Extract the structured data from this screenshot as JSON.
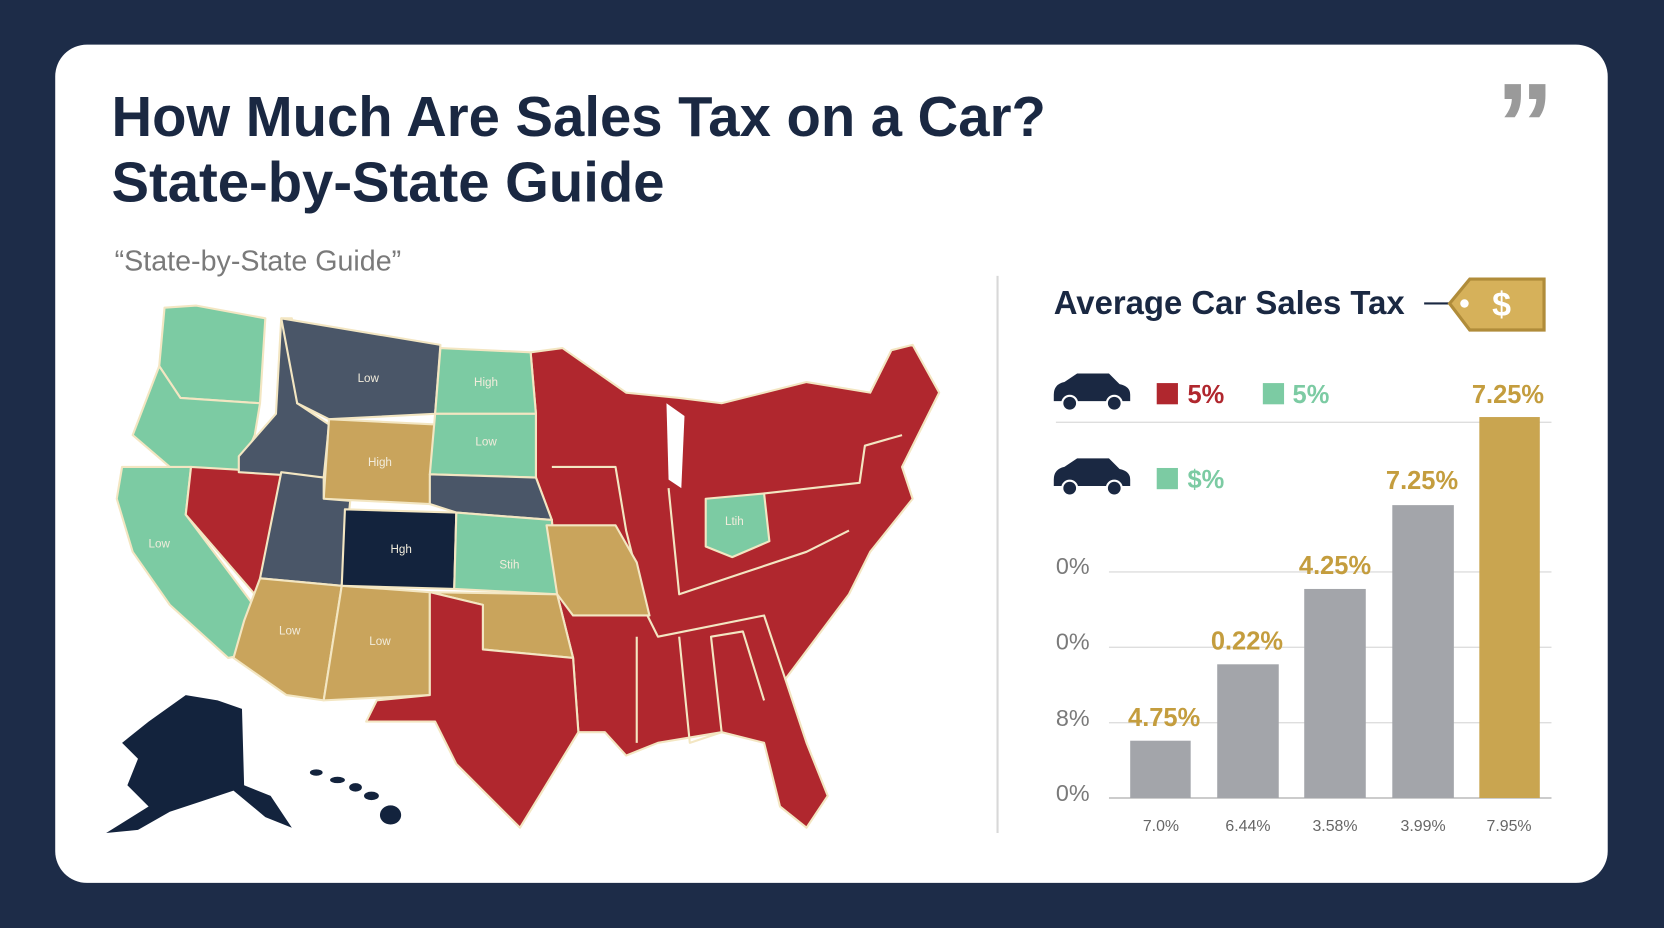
{
  "header": {
    "title_lines": [
      "How Much Are Sales Tax on a Car?",
      "State-by-State Guide"
    ],
    "subtitle": "“State-by-State Guide”",
    "quote_mark": "”"
  },
  "map": {
    "labels": [
      "Low",
      "High",
      "Low",
      "High",
      "Low",
      "Hgh",
      "Stih",
      "Low",
      "Low",
      "Ltih"
    ]
  },
  "bar_panel": {
    "title": "Average Car Sales Tax",
    "tag": "$",
    "legend": {
      "row1": [
        "5%",
        "5%"
      ],
      "row2": [
        "$%"
      ]
    },
    "axis_labels": [
      "0%",
      "0%",
      "8%",
      "0%"
    ],
    "bars": [
      {
        "value_label": "4.75%",
        "category": "7.0%"
      },
      {
        "value_label": "0.22%",
        "category": "6.44%"
      },
      {
        "value_label": "4.25%",
        "category": "3.58%"
      },
      {
        "value_label": "7.25%",
        "category": "3.99%"
      },
      {
        "value_label": "7.25%",
        "category": "7.95%"
      }
    ]
  }
}
